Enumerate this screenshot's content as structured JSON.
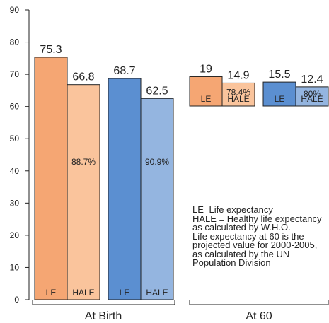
{
  "chart_data": {
    "type": "bar",
    "ylim": [
      0,
      90
    ],
    "yticks": [
      0,
      10,
      20,
      30,
      40,
      50,
      60,
      70,
      80,
      90
    ],
    "groups": [
      {
        "label": "At Birth",
        "bars": [
          {
            "series": "LE",
            "value": 75.3,
            "value_label": "75.3",
            "percent": "",
            "color": "#f5a673"
          },
          {
            "series": "HALE",
            "value": 66.8,
            "value_label": "66.8",
            "percent": "88.7%",
            "color": "#fac49c"
          },
          {
            "series": "LE",
            "value": 68.7,
            "value_label": "68.7",
            "percent": "",
            "color": "#5b8fd1"
          },
          {
            "series": "HALE",
            "value": 62.5,
            "value_label": "62.5",
            "percent": "90.9%",
            "color": "#94b5e0"
          }
        ]
      },
      {
        "label": "At 60",
        "bars": [
          {
            "series": "LE",
            "value": 19,
            "value_label": "19",
            "percent": "",
            "color": "#f5a673"
          },
          {
            "series": "HALE",
            "value": 14.9,
            "value_label": "14.9",
            "percent": "78.4%",
            "color": "#fac49c"
          },
          {
            "series": "LE",
            "value": 15.5,
            "value_label": "15.5",
            "percent": "",
            "color": "#5b8fd1"
          },
          {
            "series": "HALE",
            "value": 12.4,
            "value_label": "12.4",
            "percent": "80%",
            "color": "#94b5e0"
          }
        ]
      }
    ],
    "notes": [
      "LE=Life expectancy",
      "HALE = Healthy life expectancy as calculated by W.H.O.",
      "Life expectancy at 60 is the projected value for 2000-2005, as calculated by the UN Population Division"
    ]
  }
}
